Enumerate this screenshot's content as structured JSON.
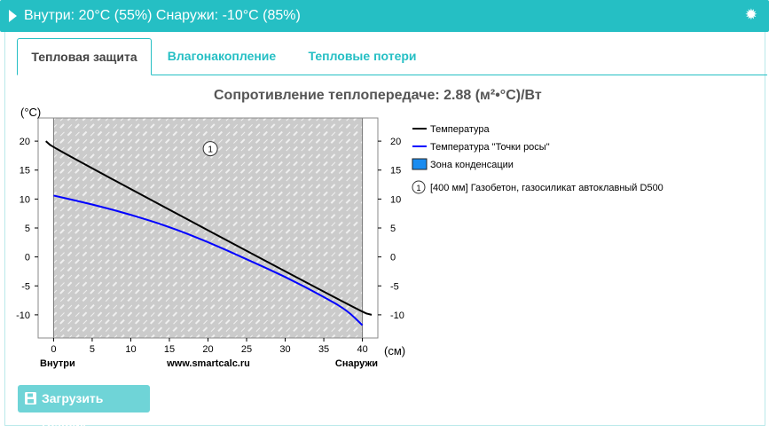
{
  "header": {
    "title": "Внутри: 20°C (55%) Снаружи: -10°C (85%)",
    "toggle_icon": "triangle-right-icon",
    "settings_icon": "gear-icon"
  },
  "tabs": [
    {
      "label": "Тепловая защита",
      "active": true
    },
    {
      "label": "Влагонакопление",
      "active": false
    },
    {
      "label": "Тепловые потери",
      "active": false
    }
  ],
  "chart_title": "Сопротивление теплопередаче: 2.88 (м²•°С)/Вт",
  "chart_data": {
    "type": "line",
    "ylabel": "(°С)",
    "xlabel": "(см)",
    "xlim": [
      -2,
      42
    ],
    "ylim": [
      -14,
      24
    ],
    "x_ticks": [
      0,
      5,
      10,
      15,
      20,
      25,
      30,
      35,
      40
    ],
    "y_ticks": [
      20,
      15,
      10,
      5,
      0,
      -5,
      -10
    ],
    "x_ticks_labels": [
      "0",
      "5",
      "10",
      "15",
      "20",
      "25",
      "30",
      "35",
      "40"
    ],
    "y_ticks_labels": [
      "20",
      "15",
      "10",
      "5",
      "0",
      "-5",
      "-10"
    ],
    "bottom_left_label": "Внутри",
    "bottom_center_label": "www.smartcalc.ru",
    "bottom_right_label": "Снаружи",
    "layer": {
      "x_range": [
        0,
        40
      ],
      "number": "1",
      "marker_x": 20.3,
      "marker_y": 18.7
    },
    "series": [
      {
        "name": "Температура",
        "color": "#000000",
        "x": [
          -1,
          0,
          40,
          41.2
        ],
        "y": [
          20,
          18.8,
          -9.6,
          -10
        ]
      },
      {
        "name": "Температура \"Точки росы\"",
        "color": "#0000ff",
        "x": [
          0,
          5,
          10,
          15,
          20,
          25,
          30,
          35,
          38,
          40
        ],
        "y": [
          10.6,
          9.1,
          7.3,
          5.2,
          2.6,
          -0.4,
          -3.4,
          -6.9,
          -9.2,
          -11.8
        ]
      }
    ],
    "legend": [
      {
        "label": "Температура",
        "kind": "line",
        "color": "#000000"
      },
      {
        "label": "Температура \"Точки росы\"",
        "kind": "line",
        "color": "#0000ff"
      },
      {
        "label": "Зона конденсации",
        "kind": "box",
        "color": "#1a8cf0"
      },
      {
        "label": "[400 мм] Газобетон, газосиликат автоклавный D500",
        "kind": "marker",
        "marker_text": "1"
      }
    ],
    "legend_position": "right",
    "grid": false
  },
  "download_button": {
    "label": "Загрузить график",
    "icon": "save-icon"
  }
}
